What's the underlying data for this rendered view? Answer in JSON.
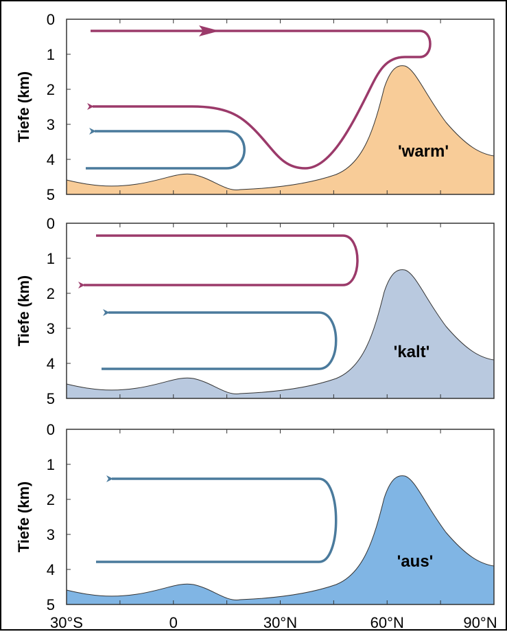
{
  "panels": [
    {
      "label": "'warm'",
      "y_axis_label": "Tiefe (km)",
      "y_ticks": [
        "0",
        "1",
        "2",
        "3",
        "4",
        "5"
      ]
    },
    {
      "label": "'kalt'",
      "y_axis_label": "Tiefe (km)",
      "y_ticks": [
        "0",
        "1",
        "2",
        "3",
        "4",
        "5"
      ]
    },
    {
      "label": "'aus'",
      "y_axis_label": "Tiefe (km)",
      "y_ticks": [
        "0",
        "1",
        "2",
        "3",
        "4",
        "5"
      ]
    }
  ],
  "x_ticks": [
    "30°S",
    "0",
    "30°N",
    "60°N",
    "90°N"
  ]
}
